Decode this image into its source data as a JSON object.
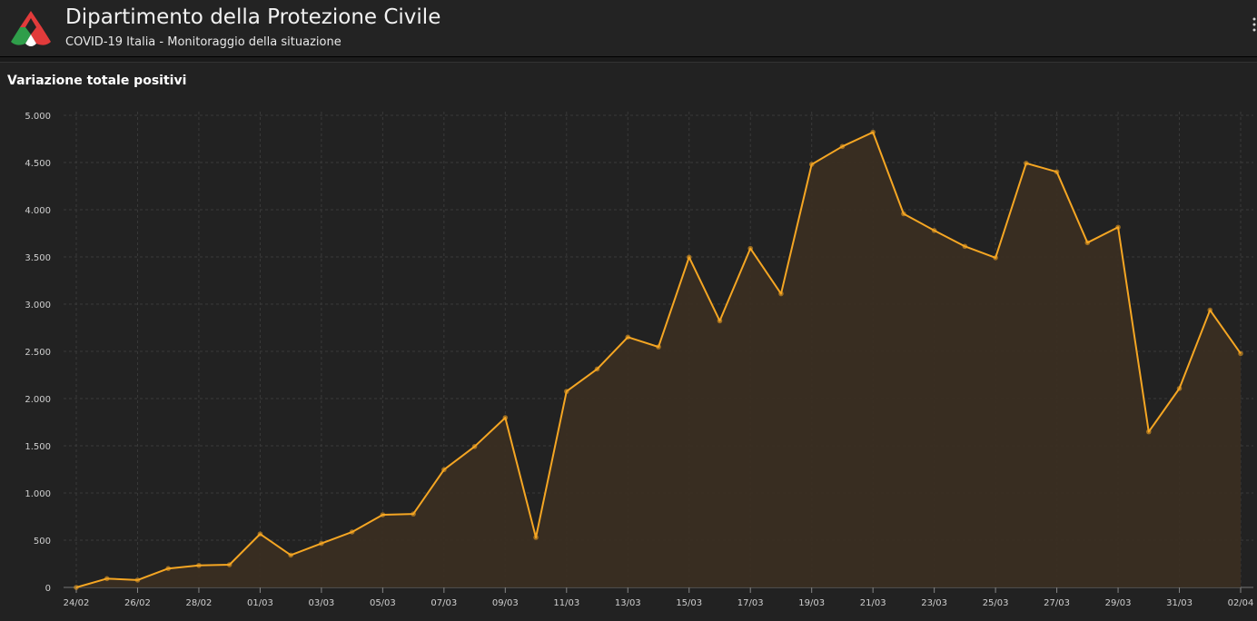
{
  "header": {
    "title": "Dipartimento della Protezione Civile",
    "subtitle": "COVID-19 Italia - Monitoraggio della situazione",
    "logo_icon": "protezione-civile-logo"
  },
  "panel": {
    "title": "Variazione totale positivi"
  },
  "colors": {
    "line": "#f5a623",
    "area": "#3a2e22",
    "grid": "#3a3a3a",
    "background": "#222222"
  },
  "chart_data": {
    "type": "area",
    "title": "Variazione totale positivi",
    "x": [
      "24/02",
      "25/02",
      "26/02",
      "27/02",
      "28/02",
      "29/02",
      "01/03",
      "02/03",
      "03/03",
      "04/03",
      "05/03",
      "06/03",
      "07/03",
      "08/03",
      "09/03",
      "10/03",
      "11/03",
      "12/03",
      "13/03",
      "14/03",
      "15/03",
      "16/03",
      "17/03",
      "18/03",
      "19/03",
      "20/03",
      "21/03",
      "22/03",
      "23/03",
      "24/03",
      "25/03",
      "26/03",
      "27/03",
      "28/03",
      "29/03",
      "30/03",
      "31/03",
      "01/04",
      "02/04"
    ],
    "x_tick_labels": [
      "24/02",
      "26/02",
      "28/02",
      "01/03",
      "03/03",
      "05/03",
      "07/03",
      "09/03",
      "11/03",
      "13/03",
      "15/03",
      "17/03",
      "19/03",
      "21/03",
      "23/03",
      "25/03",
      "27/03",
      "29/03",
      "31/03",
      "02/04"
    ],
    "series": [
      {
        "values": [
          0,
          93,
          78,
          200,
          233,
          240,
          566,
          342,
          466,
          587,
          769,
          778,
          1247,
          1492,
          1797,
          529,
          2076,
          2313,
          2651,
          2547,
          3497,
          2823,
          3590,
          3110,
          4480,
          4670,
          4821,
          3957,
          3780,
          3612,
          3491,
          4492,
          4401,
          3651,
          3815,
          1648,
          2107,
          2937,
          2477
        ]
      }
    ],
    "ylim": [
      0,
      5000
    ],
    "y_ticks": [
      0,
      500,
      1000,
      1500,
      2000,
      2500,
      3000,
      3500,
      4000,
      4500,
      5000
    ],
    "y_tick_labels": [
      "0",
      "500",
      "1.000",
      "1.500",
      "2.000",
      "2.500",
      "3.000",
      "3.500",
      "4.000",
      "4.500",
      "5.000"
    ],
    "grid": true,
    "legend": "none"
  }
}
